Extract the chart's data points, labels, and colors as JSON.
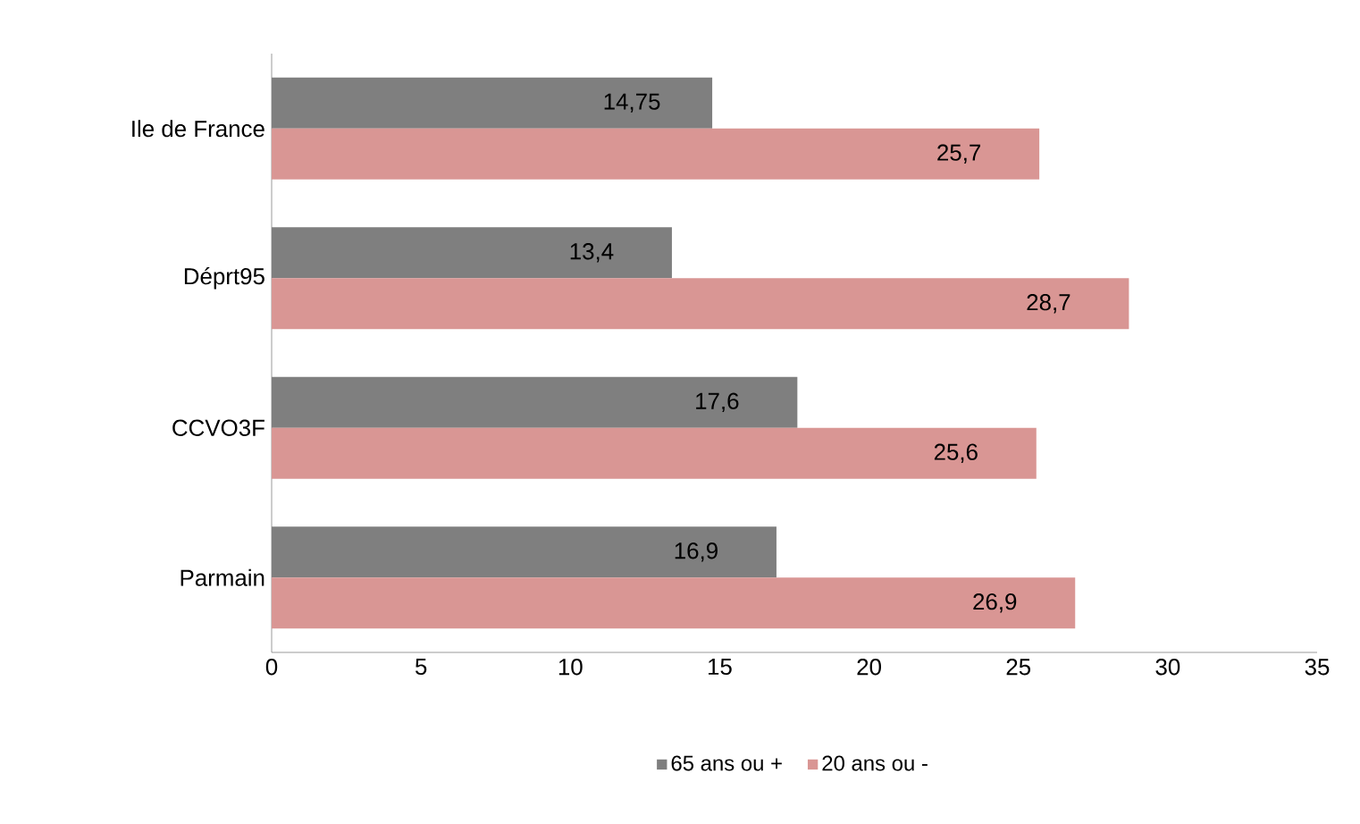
{
  "chart_data": {
    "type": "bar",
    "orientation": "horizontal",
    "categories": [
      "Ile de France",
      "Déprt95",
      "CCVO3F",
      "Parmain"
    ],
    "series": [
      {
        "name": "65 ans ou +",
        "color": "#7f7f7f",
        "values": [
          14.75,
          13.4,
          17.6,
          16.9
        ],
        "value_labels": [
          "14,75",
          "13,4",
          "17,6",
          "16,9"
        ]
      },
      {
        "name": "20 ans ou -",
        "color": "#d99694",
        "values": [
          25.7,
          28.7,
          25.6,
          26.9
        ],
        "value_labels": [
          "25,7",
          "28,7",
          "25,6",
          "26,9"
        ]
      }
    ],
    "xlim": [
      0,
      35
    ],
    "xticks": [
      0,
      5,
      10,
      15,
      20,
      25,
      30,
      35
    ],
    "grid": false,
    "legend": "bottom"
  }
}
